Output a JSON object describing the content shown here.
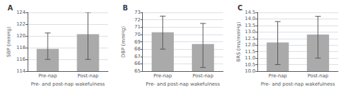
{
  "chart_data": [
    {
      "type": "bar",
      "title": "A",
      "ylabel": "SBP (mmHg)",
      "xlabel": "Pre- and post-nap wakefulness",
      "categories": [
        "Pre-nap",
        "Post-nap"
      ],
      "values": [
        117.8,
        120.3
      ],
      "errors_upper": [
        2.7,
        3.7
      ],
      "errors_lower": [
        1.8,
        4.3
      ],
      "color": "#aaaaaa",
      "ylim": [
        114,
        124
      ],
      "yticks": [
        114,
        116,
        118,
        120,
        122,
        124
      ],
      "grid": true
    },
    {
      "type": "bar",
      "title": "B",
      "ylabel": "DBP (mmHg)",
      "xlabel": "Pre- and post-nap wakefulness",
      "categories": [
        "Pre-nap",
        "Post-nap"
      ],
      "values": [
        70.3,
        68.7
      ],
      "errors_upper": [
        2.2,
        2.8
      ],
      "errors_lower": [
        2.3,
        3.2
      ],
      "color": "#aaaaaa",
      "ylim": [
        65,
        73
      ],
      "yticks": [
        65,
        66,
        67,
        68,
        69,
        70,
        71,
        72,
        73
      ],
      "grid": true
    },
    {
      "type": "bar",
      "title": "C",
      "ylabel": "BRS (ms/mmHg)",
      "xlabel": "Pre- and post-nap wakefulness",
      "categories": [
        "Pre-nap",
        "Post-nap"
      ],
      "values": [
        12.2,
        12.8
      ],
      "errors_upper": [
        1.6,
        1.4
      ],
      "errors_lower": [
        1.7,
        1.8
      ],
      "color": "#aaaaaa",
      "ylim": [
        10.0,
        14.5
      ],
      "yticks": [
        {
          "value": 10,
          "label": "10.0"
        },
        10.5,
        {
          "value": 11,
          "label": "11.0"
        },
        11.5,
        {
          "value": 12,
          "label": "12.0"
        },
        12.5,
        {
          "value": 13,
          "label": "13.0"
        },
        13.5,
        {
          "value": 14,
          "label": "14.0"
        },
        14.5
      ],
      "grid": true
    }
  ]
}
